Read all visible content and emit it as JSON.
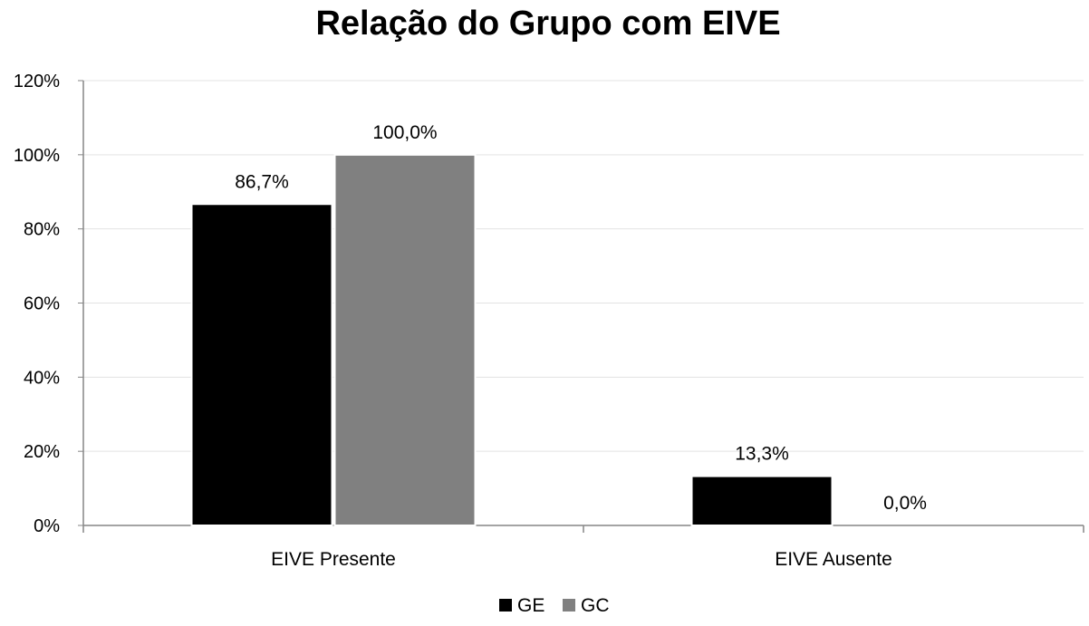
{
  "chart_data": {
    "type": "bar",
    "title": "Relação do Grupo com EIVE",
    "categories": [
      "EIVE Presente",
      "EIVE Ausente"
    ],
    "series": [
      {
        "name": "GE",
        "values": [
          86.7,
          13.3
        ],
        "labels": [
          "86,7%",
          "13,3%"
        ],
        "color": "#000000"
      },
      {
        "name": "GC",
        "values": [
          100.0,
          0.0
        ],
        "labels": [
          "100,0%",
          "0,0%"
        ],
        "color": "#808080"
      }
    ],
    "ylim": [
      0,
      120
    ],
    "yticks": [
      0,
      20,
      40,
      60,
      80,
      100,
      120
    ],
    "ytick_labels": [
      "0%",
      "20%",
      "40%",
      "60%",
      "80%",
      "100%",
      "120%"
    ],
    "xlabel": "",
    "ylabel": "",
    "grid": true,
    "legend_position": "bottom"
  }
}
